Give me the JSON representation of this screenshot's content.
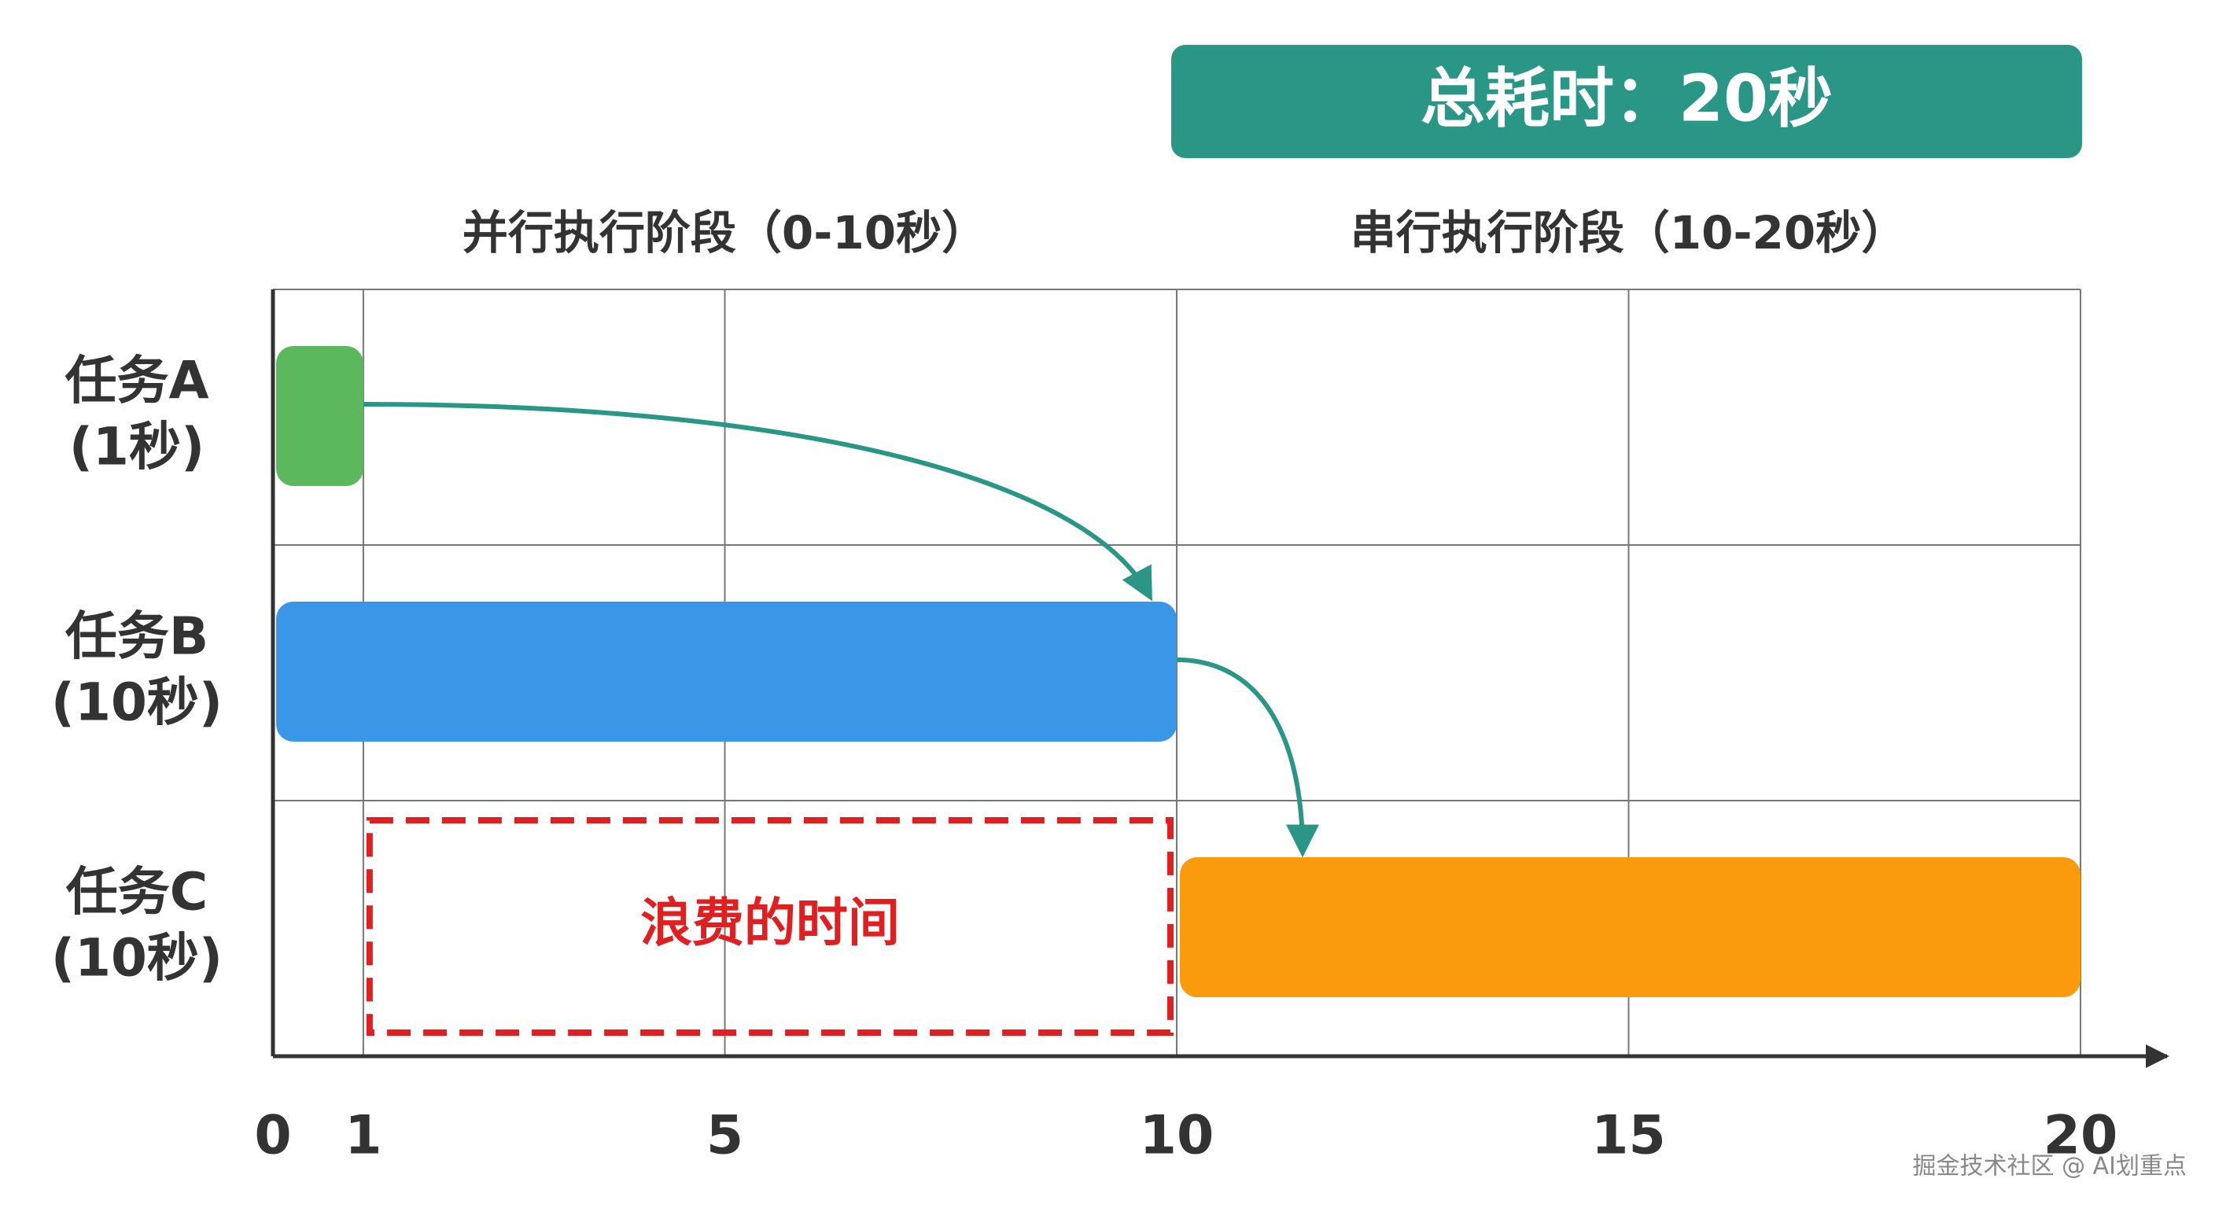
{
  "chart_data": {
    "type": "gantt",
    "title": "总耗时：20秒",
    "title_color": "#2a9786",
    "phases": [
      {
        "label": "并行执行阶段（0-10秒）",
        "start": 0,
        "end": 10
      },
      {
        "label": "串行执行阶段（10-20秒）",
        "start": 10,
        "end": 20
      }
    ],
    "tasks": [
      {
        "name": "任务A",
        "label": "(1秒)",
        "start": 0,
        "end": 1,
        "color": "#5cb85c"
      },
      {
        "name": "任务B",
        "label": "(10秒)",
        "start": 0,
        "end": 10,
        "color": "#3a96e6"
      },
      {
        "name": "任务C",
        "label": "(10秒)",
        "start": 10,
        "end": 20,
        "color": "#f99b0c"
      }
    ],
    "waste": {
      "label": "浪费的时间",
      "start": 1,
      "end": 10,
      "color": "#e02020"
    },
    "arrow_color": "#2a9786",
    "xlim": [
      0,
      20
    ],
    "xticks": [
      0,
      1,
      5,
      10,
      15,
      20
    ],
    "grid": true,
    "watermark": "掘金技术社区 @ AI划重点"
  }
}
